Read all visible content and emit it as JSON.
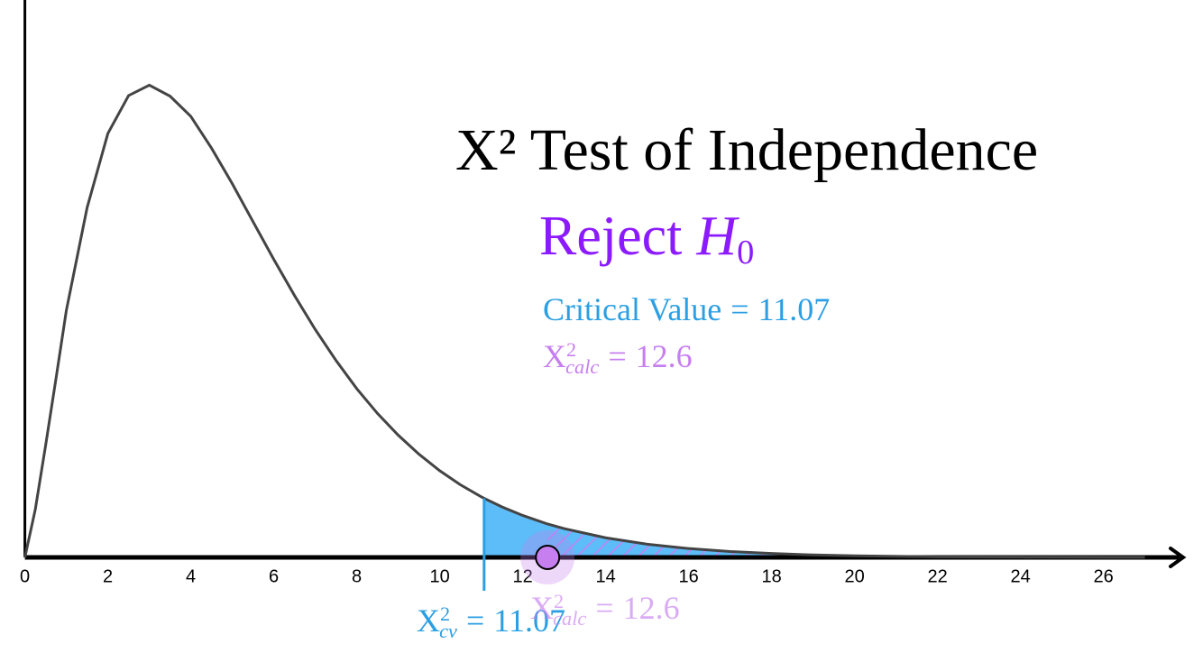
{
  "chart_data": {
    "type": "line",
    "title": "X² Test of Independence",
    "decision": {
      "word": "Reject",
      "symbol": "H",
      "subscript": "0"
    },
    "relation": "=",
    "critical_value": {
      "label": "Critical Value",
      "value": 11.07
    },
    "calculated": {
      "symbol": "X",
      "sup": "2",
      "sub": "calc",
      "value": 12.6
    },
    "cv_marker": {
      "symbol": "X",
      "sup": "2",
      "sub": "cv"
    },
    "x": [
      0,
      0.25,
      0.5,
      0.75,
      1,
      1.5,
      2,
      2.5,
      3,
      3.5,
      4,
      4.5,
      5,
      5.5,
      6,
      6.5,
      7,
      7.5,
      8,
      8.5,
      9,
      9.5,
      10,
      10.5,
      11,
      11.07,
      11.5,
      12,
      12.6,
      13,
      14,
      15,
      16,
      17,
      18,
      19,
      20,
      22,
      24,
      26,
      27
    ],
    "values": [
      0,
      0.0156,
      0.0366,
      0.0584,
      0.0807,
      0.1142,
      0.1384,
      0.1508,
      0.1542,
      0.1506,
      0.144,
      0.1336,
      0.122,
      0.1096,
      0.0973,
      0.0855,
      0.0744,
      0.0643,
      0.0551,
      0.047,
      0.0399,
      0.0337,
      0.0283,
      0.0237,
      0.0198,
      0.0193,
      0.0165,
      0.0137,
      0.0109,
      0.0094,
      0.0064,
      0.0043,
      0.0029,
      0.0019,
      0.0013,
      0.0008,
      0.0005,
      0.0002,
      0.0001,
      4e-05,
      3e-05
    ],
    "xlim": [
      -0.6,
      28.4
    ],
    "ylim": [
      0,
      0.182
    ],
    "xticks": [
      0,
      2,
      4,
      6,
      8,
      10,
      12,
      14,
      16,
      18,
      20,
      22,
      24,
      26
    ],
    "grid": false,
    "colors": {
      "curve": "#444444",
      "critical": "#2b9fe3",
      "critical_fill": "#5dbdf8",
      "calculated": "#c77ff0",
      "decision": "#8c1aff",
      "title": "#000000"
    }
  }
}
